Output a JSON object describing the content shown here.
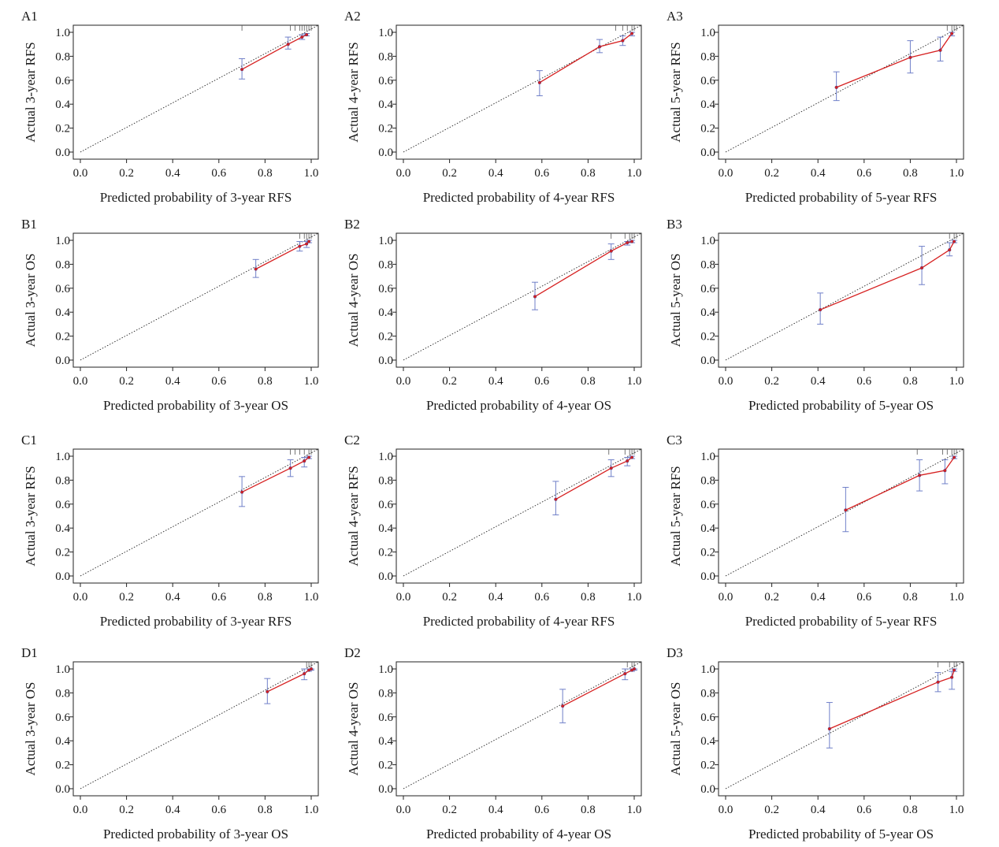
{
  "figure": {
    "tick_labels": [
      "0.0",
      "0.2",
      "0.4",
      "0.6",
      "0.8",
      "1.0"
    ],
    "colors": {
      "calibration_line": "#d62020",
      "error_bar": "#6f7fc8",
      "ideal_line": "#222222",
      "axis": "#222222"
    }
  },
  "chart_data": [
    {
      "type": "line",
      "panel": "A1",
      "xlabel": "Predicted probability of 3-year RFS",
      "ylabel": "Actual 3-year RFS",
      "xlim": [
        0,
        1
      ],
      "ylim": [
        0,
        1
      ],
      "grid": false,
      "reference_line": "diagonal",
      "series": [
        {
          "points": [
            {
              "x": 0.7,
              "y": 0.69,
              "lo": 0.61,
              "hi": 0.78
            },
            {
              "x": 0.9,
              "y": 0.9,
              "lo": 0.86,
              "hi": 0.96
            },
            {
              "x": 0.96,
              "y": 0.96,
              "lo": 0.94,
              "hi": 0.98
            },
            {
              "x": 0.98,
              "y": 0.98,
              "lo": 0.97,
              "hi": 0.99
            }
          ]
        }
      ],
      "rug": [
        0.7,
        0.91,
        0.93,
        0.95,
        0.96,
        0.97,
        0.98,
        0.99,
        1.0
      ]
    },
    {
      "type": "line",
      "panel": "A2",
      "xlabel": "Predicted probability of 4-year RFS",
      "ylabel": "Actual 4-year RFS",
      "xlim": [
        0,
        1
      ],
      "ylim": [
        0,
        1
      ],
      "grid": false,
      "reference_line": "diagonal",
      "series": [
        {
          "points": [
            {
              "x": 0.59,
              "y": 0.58,
              "lo": 0.47,
              "hi": 0.68
            },
            {
              "x": 0.85,
              "y": 0.88,
              "lo": 0.83,
              "hi": 0.94
            },
            {
              "x": 0.95,
              "y": 0.93,
              "lo": 0.89,
              "hi": 0.97
            },
            {
              "x": 0.99,
              "y": 0.99,
              "lo": 0.97,
              "hi": 1.0
            }
          ]
        }
      ],
      "rug": [
        0.92,
        0.95,
        0.97,
        0.99,
        1.0
      ]
    },
    {
      "type": "line",
      "panel": "A3",
      "xlabel": "Predicted probability of 5-year RFS",
      "ylabel": "Actual 5-year RFS",
      "xlim": [
        0,
        1
      ],
      "ylim": [
        0,
        1
      ],
      "grid": false,
      "reference_line": "diagonal",
      "series": [
        {
          "points": [
            {
              "x": 0.48,
              "y": 0.54,
              "lo": 0.43,
              "hi": 0.67
            },
            {
              "x": 0.8,
              "y": 0.79,
              "lo": 0.66,
              "hi": 0.93
            },
            {
              "x": 0.93,
              "y": 0.85,
              "lo": 0.76,
              "hi": 0.96
            },
            {
              "x": 0.98,
              "y": 0.99,
              "lo": 0.97,
              "hi": 1.0
            }
          ]
        }
      ],
      "rug": [
        0.96,
        0.98,
        0.99,
        1.0
      ]
    },
    {
      "type": "line",
      "panel": "B1",
      "xlabel": "Predicted probability of 3-year OS",
      "ylabel": "Actual 3-year OS",
      "xlim": [
        0,
        1
      ],
      "ylim": [
        0,
        1
      ],
      "grid": false,
      "reference_line": "diagonal",
      "series": [
        {
          "points": [
            {
              "x": 0.76,
              "y": 0.76,
              "lo": 0.69,
              "hi": 0.84
            },
            {
              "x": 0.95,
              "y": 0.95,
              "lo": 0.91,
              "hi": 0.99
            },
            {
              "x": 0.98,
              "y": 0.97,
              "lo": 0.94,
              "hi": 0.99
            },
            {
              "x": 0.99,
              "y": 0.99,
              "lo": 0.98,
              "hi": 1.0
            }
          ]
        }
      ],
      "rug": [
        0.95,
        0.97,
        0.98,
        0.99,
        1.0
      ]
    },
    {
      "type": "line",
      "panel": "B2",
      "xlabel": "Predicted probability of 4-year OS",
      "ylabel": "Actual 4-year OS",
      "xlim": [
        0,
        1
      ],
      "ylim": [
        0,
        1
      ],
      "grid": false,
      "reference_line": "diagonal",
      "series": [
        {
          "points": [
            {
              "x": 0.57,
              "y": 0.53,
              "lo": 0.42,
              "hi": 0.65
            },
            {
              "x": 0.9,
              "y": 0.91,
              "lo": 0.84,
              "hi": 0.97
            },
            {
              "x": 0.97,
              "y": 0.98,
              "lo": 0.96,
              "hi": 0.99
            },
            {
              "x": 0.99,
              "y": 0.99,
              "lo": 0.98,
              "hi": 1.0
            }
          ]
        }
      ],
      "rug": [
        0.9,
        0.96,
        0.98,
        0.99,
        1.0
      ]
    },
    {
      "type": "line",
      "panel": "B3",
      "xlabel": "Predicted probability of 5-year OS",
      "ylabel": "Actual 5-year OS",
      "xlim": [
        0,
        1
      ],
      "ylim": [
        0,
        1
      ],
      "grid": false,
      "reference_line": "diagonal",
      "series": [
        {
          "points": [
            {
              "x": 0.41,
              "y": 0.42,
              "lo": 0.3,
              "hi": 0.56
            },
            {
              "x": 0.85,
              "y": 0.77,
              "lo": 0.63,
              "hi": 0.95
            },
            {
              "x": 0.97,
              "y": 0.92,
              "lo": 0.87,
              "hi": 0.98
            },
            {
              "x": 0.99,
              "y": 0.99,
              "lo": 0.98,
              "hi": 1.0
            }
          ]
        }
      ],
      "rug": [
        0.97,
        0.99,
        1.0
      ]
    },
    {
      "type": "line",
      "panel": "C1",
      "xlabel": "Predicted probability of 3-year RFS",
      "ylabel": "Actual 3-year RFS",
      "xlim": [
        0,
        1
      ],
      "ylim": [
        0,
        1
      ],
      "grid": false,
      "reference_line": "diagonal",
      "series": [
        {
          "points": [
            {
              "x": 0.7,
              "y": 0.7,
              "lo": 0.58,
              "hi": 0.83
            },
            {
              "x": 0.91,
              "y": 0.9,
              "lo": 0.83,
              "hi": 0.97
            },
            {
              "x": 0.97,
              "y": 0.96,
              "lo": 0.91,
              "hi": 0.99
            },
            {
              "x": 0.99,
              "y": 0.99,
              "lo": 0.98,
              "hi": 1.0
            }
          ]
        }
      ],
      "rug": [
        0.91,
        0.93,
        0.95,
        0.97,
        0.99,
        1.0
      ]
    },
    {
      "type": "line",
      "panel": "C2",
      "xlabel": "Predicted probability of 4-year RFS",
      "ylabel": "Actual 4-year RFS",
      "xlim": [
        0,
        1
      ],
      "ylim": [
        0,
        1
      ],
      "grid": false,
      "reference_line": "diagonal",
      "series": [
        {
          "points": [
            {
              "x": 0.66,
              "y": 0.64,
              "lo": 0.51,
              "hi": 0.79
            },
            {
              "x": 0.9,
              "y": 0.9,
              "lo": 0.83,
              "hi": 0.97
            },
            {
              "x": 0.97,
              "y": 0.96,
              "lo": 0.92,
              "hi": 0.99
            },
            {
              "x": 0.99,
              "y": 0.99,
              "lo": 0.98,
              "hi": 1.0
            }
          ]
        }
      ],
      "rug": [
        0.89,
        0.96,
        0.98,
        0.99,
        1.0
      ]
    },
    {
      "type": "line",
      "panel": "C3",
      "xlabel": "Predicted probability of 5-year RFS",
      "ylabel": "Actual 5-year RFS",
      "xlim": [
        0,
        1
      ],
      "ylim": [
        0,
        1
      ],
      "grid": false,
      "reference_line": "diagonal",
      "series": [
        {
          "points": [
            {
              "x": 0.52,
              "y": 0.55,
              "lo": 0.37,
              "hi": 0.74
            },
            {
              "x": 0.84,
              "y": 0.84,
              "lo": 0.71,
              "hi": 0.97
            },
            {
              "x": 0.95,
              "y": 0.88,
              "lo": 0.77,
              "hi": 0.97
            },
            {
              "x": 0.99,
              "y": 0.99,
              "lo": 0.98,
              "hi": 1.0
            }
          ]
        }
      ],
      "rug": [
        0.83,
        0.94,
        0.96,
        0.98,
        0.99,
        1.0
      ]
    },
    {
      "type": "line",
      "panel": "D1",
      "xlabel": "Predicted probability of 3-year OS",
      "ylabel": "Actual 3-year OS",
      "xlim": [
        0,
        1
      ],
      "ylim": [
        0,
        1
      ],
      "grid": false,
      "reference_line": "diagonal",
      "series": [
        {
          "points": [
            {
              "x": 0.81,
              "y": 0.81,
              "lo": 0.71,
              "hi": 0.92
            },
            {
              "x": 0.97,
              "y": 0.96,
              "lo": 0.91,
              "hi": 1.0
            },
            {
              "x": 0.99,
              "y": 0.99,
              "lo": 0.98,
              "hi": 1.0
            },
            {
              "x": 1.0,
              "y": 1.0,
              "lo": 0.99,
              "hi": 1.0
            }
          ]
        }
      ],
      "rug": [
        0.98,
        0.99,
        1.0
      ]
    },
    {
      "type": "line",
      "panel": "D2",
      "xlabel": "Predicted probability of 4-year OS",
      "ylabel": "Actual 4-year OS",
      "xlim": [
        0,
        1
      ],
      "ylim": [
        0,
        1
      ],
      "grid": false,
      "reference_line": "diagonal",
      "series": [
        {
          "points": [
            {
              "x": 0.69,
              "y": 0.69,
              "lo": 0.55,
              "hi": 0.83
            },
            {
              "x": 0.96,
              "y": 0.96,
              "lo": 0.91,
              "hi": 1.0
            },
            {
              "x": 0.99,
              "y": 0.99,
              "lo": 0.98,
              "hi": 1.0
            },
            {
              "x": 1.0,
              "y": 1.0,
              "lo": 0.99,
              "hi": 1.0
            }
          ]
        }
      ],
      "rug": [
        0.97,
        0.99,
        1.0
      ]
    },
    {
      "type": "line",
      "panel": "D3",
      "xlabel": "Predicted probability of 5-year OS",
      "ylabel": "Actual 5-year OS",
      "xlim": [
        0,
        1
      ],
      "ylim": [
        0,
        1
      ],
      "grid": false,
      "reference_line": "diagonal",
      "series": [
        {
          "points": [
            {
              "x": 0.45,
              "y": 0.5,
              "lo": 0.34,
              "hi": 0.72
            },
            {
              "x": 0.92,
              "y": 0.89,
              "lo": 0.81,
              "hi": 0.97
            },
            {
              "x": 0.98,
              "y": 0.93,
              "lo": 0.83,
              "hi": 0.98
            },
            {
              "x": 0.99,
              "y": 0.99,
              "lo": 0.98,
              "hi": 1.0
            }
          ]
        }
      ],
      "rug": [
        0.92,
        0.97,
        0.99,
        1.0
      ]
    }
  ]
}
